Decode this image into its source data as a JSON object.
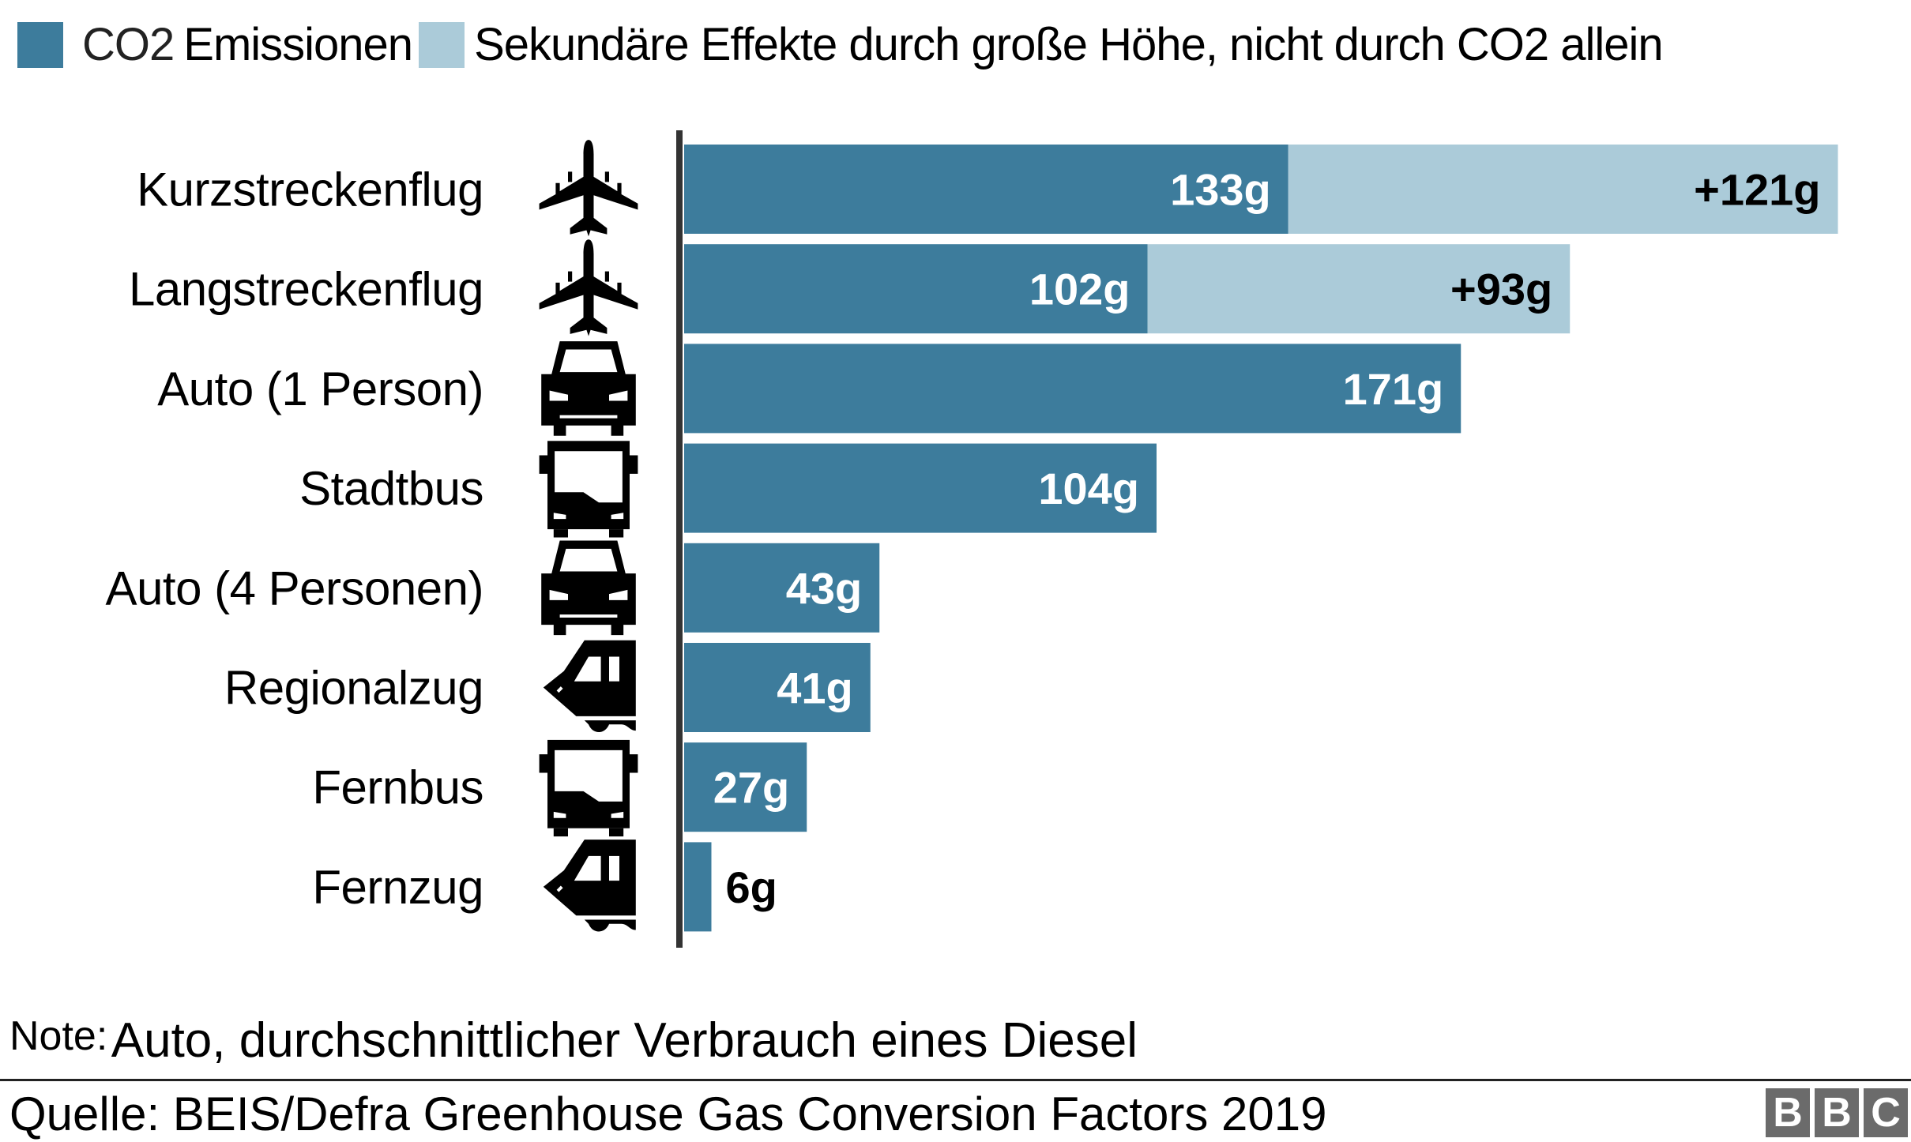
{
  "chart_data": {
    "type": "bar",
    "orientation": "horizontal",
    "stacked": true,
    "title": "",
    "xlabel": "",
    "ylabel": "",
    "unit": "g",
    "xlim": [
      0,
      260
    ],
    "grid": false,
    "legend_position": "top-left",
    "categories": [
      "Kurzstreckenflug",
      "Langstreckenflug",
      "Auto (1 Person)",
      "Stadtbus",
      "Auto (4 Personen)",
      "Regionalzug",
      "Fernbus",
      "Fernzug"
    ],
    "icons": [
      "airplane-icon",
      "airplane-icon",
      "car-icon",
      "bus-icon",
      "car-icon",
      "train-icon",
      "bus-icon",
      "train-icon"
    ],
    "series": [
      {
        "name": "CO2 Emissionen",
        "color": "#3d7c9c",
        "values": [
          133,
          102,
          171,
          104,
          43,
          41,
          27,
          6
        ],
        "labels": [
          "133g",
          "102g",
          "171g",
          "104g",
          "43g",
          "41g",
          "27g",
          "6g"
        ]
      },
      {
        "name": "Sekundäre Effekte durch große Höhe, nicht durch CO2 allein",
        "color": "#abcbd9",
        "values": [
          121,
          93,
          0,
          0,
          0,
          0,
          0,
          0
        ],
        "labels": [
          "+121g",
          "+93g",
          "",
          "",
          "",
          "",
          "",
          ""
        ]
      }
    ]
  },
  "legend": {
    "items": [
      {
        "label_a": "CO2",
        "label_b": "Emissionen",
        "color": "#3d7c9c"
      },
      {
        "label": "Sekundäre Effekte durch große Höhe, nicht durch CO2 allein",
        "color": "#abcbd9"
      }
    ]
  },
  "footer": {
    "note_prefix": "Note:",
    "note_text": "Auto, durchschnittlicher Verbrauch eines Diesel",
    "source": "Quelle: BEIS/Defra Greenhouse Gas Conversion Factors 2019",
    "logo_letters": [
      "B",
      "B",
      "C"
    ]
  }
}
